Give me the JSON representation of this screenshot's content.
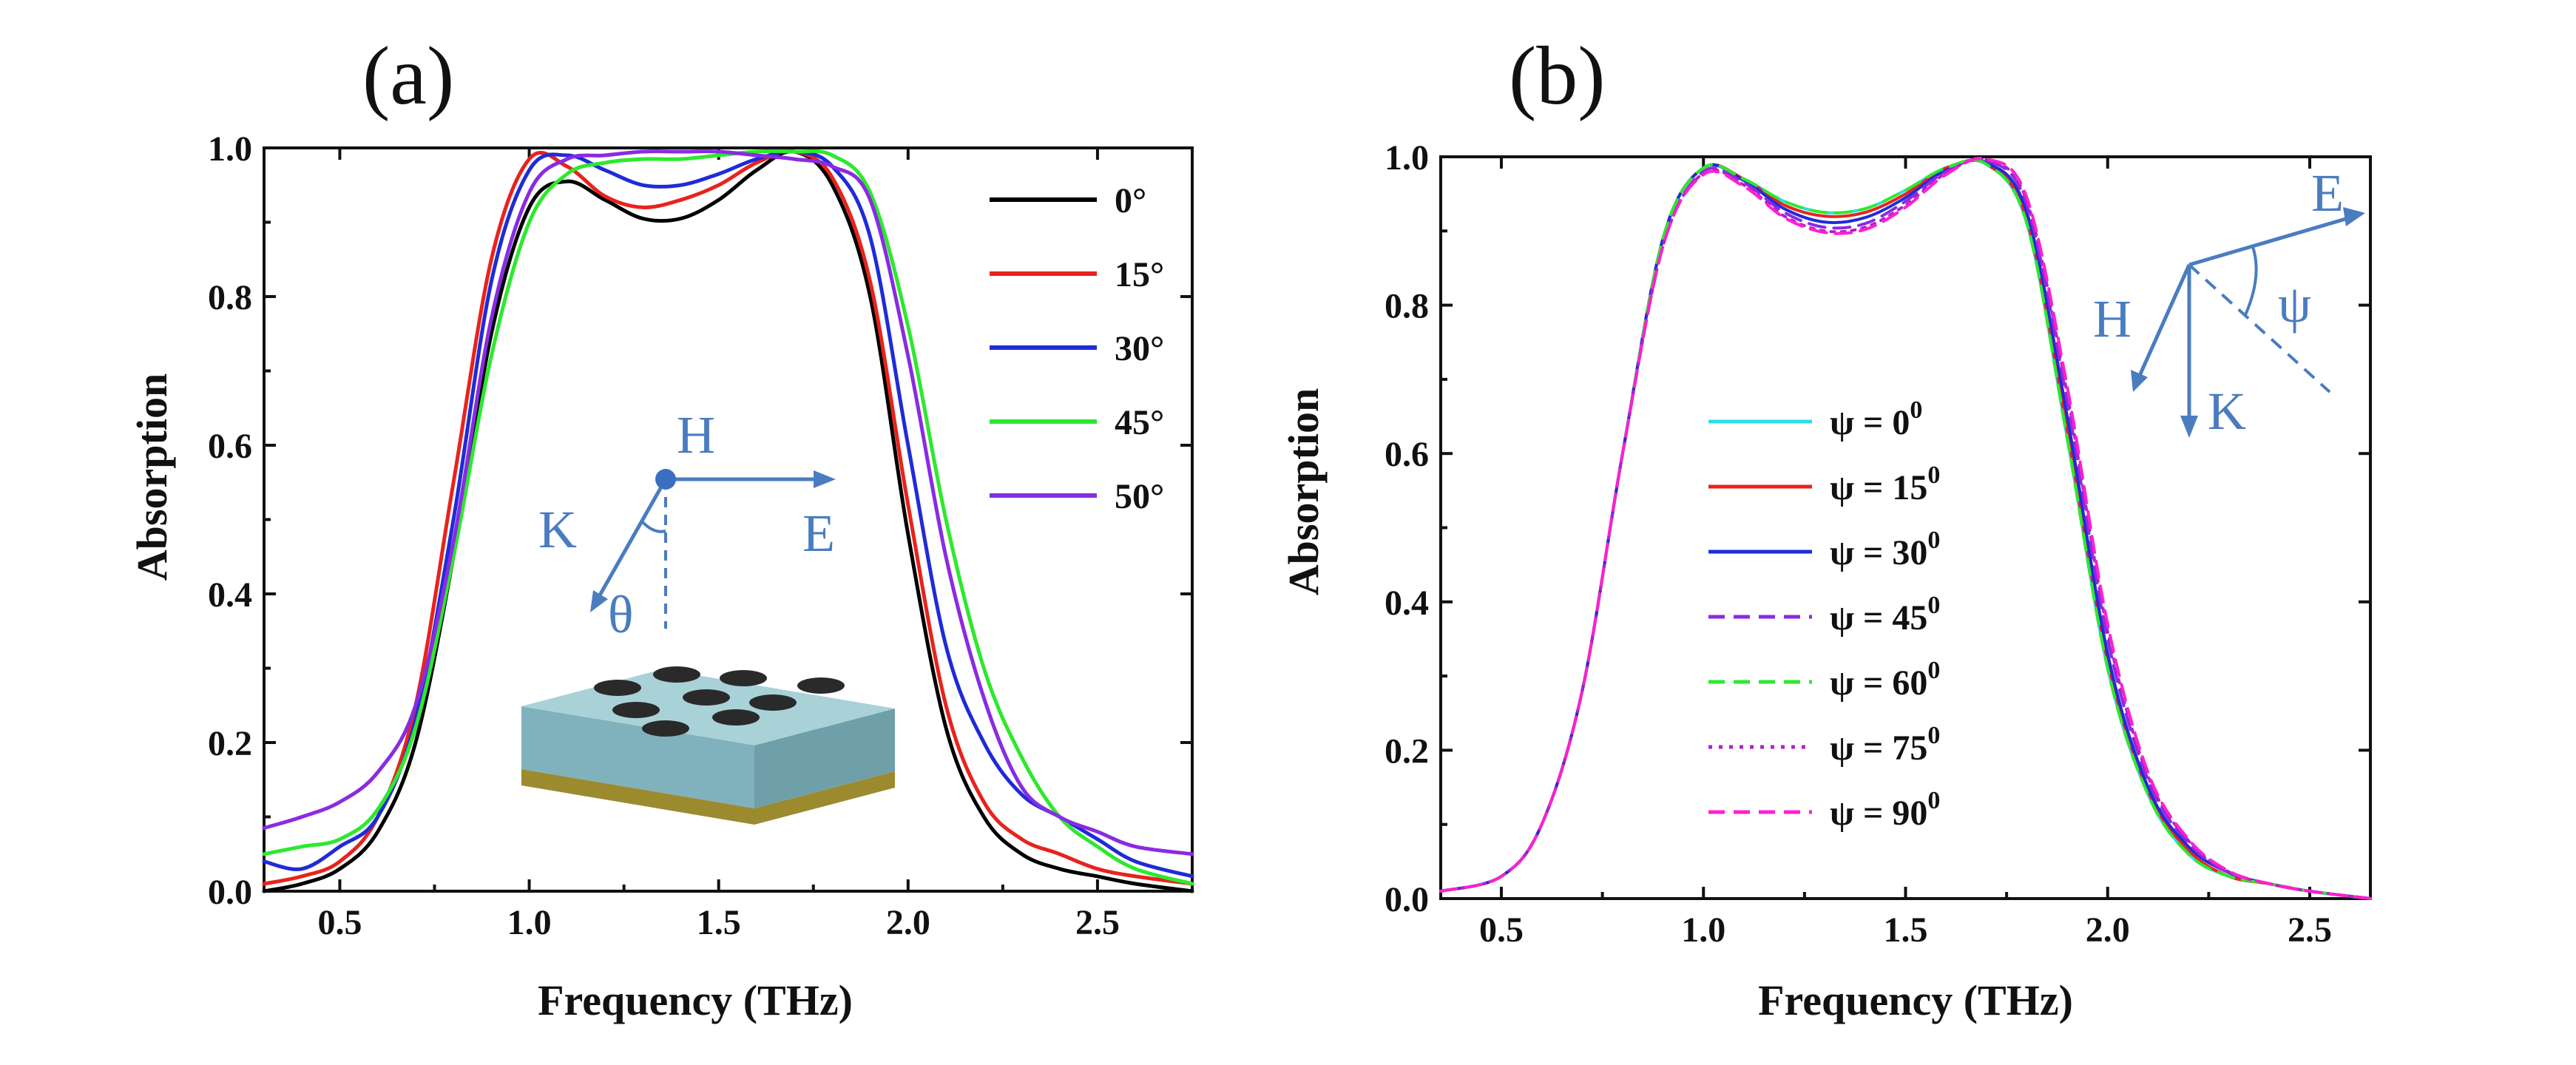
{
  "chart_data": [
    {
      "type": "line",
      "panel_label": "(a)",
      "xlabel": "Frequency (THz)",
      "ylabel": "Absorption",
      "xlim": [
        0.3,
        2.75
      ],
      "ylim": [
        0.0,
        1.0
      ],
      "xticks": [
        "0.5",
        "1.0",
        "1.5",
        "2.0",
        "2.5"
      ],
      "yticks": [
        "0.0",
        "0.2",
        "0.4",
        "0.6",
        "0.8",
        "1.0"
      ],
      "legend_position": "top-right",
      "series": [
        {
          "name": "0°",
          "color": "#000000",
          "dash": "solid",
          "x": [
            0.3,
            0.4,
            0.5,
            0.6,
            0.7,
            0.8,
            0.9,
            1.0,
            1.1,
            1.2,
            1.3,
            1.4,
            1.5,
            1.6,
            1.7,
            1.8,
            1.9,
            2.0,
            2.1,
            2.2,
            2.3,
            2.4,
            2.5,
            2.6,
            2.75
          ],
          "y": [
            0.0,
            0.01,
            0.03,
            0.08,
            0.2,
            0.45,
            0.75,
            0.92,
            0.955,
            0.93,
            0.905,
            0.905,
            0.93,
            0.97,
            0.995,
            0.95,
            0.8,
            0.48,
            0.22,
            0.1,
            0.05,
            0.03,
            0.02,
            0.01,
            0.0
          ]
        },
        {
          "name": "15°",
          "color": "#e8231c",
          "dash": "solid",
          "x": [
            0.3,
            0.4,
            0.5,
            0.6,
            0.7,
            0.8,
            0.9,
            1.0,
            1.1,
            1.2,
            1.3,
            1.4,
            1.5,
            1.6,
            1.7,
            1.8,
            1.9,
            2.0,
            2.1,
            2.2,
            2.3,
            2.4,
            2.5,
            2.6,
            2.75
          ],
          "y": [
            0.01,
            0.02,
            0.04,
            0.1,
            0.25,
            0.55,
            0.85,
            0.985,
            0.975,
            0.935,
            0.92,
            0.93,
            0.95,
            0.98,
            0.995,
            0.96,
            0.82,
            0.52,
            0.25,
            0.12,
            0.07,
            0.05,
            0.03,
            0.02,
            0.01
          ]
        },
        {
          "name": "30°",
          "color": "#1f2bd8",
          "dash": "solid",
          "x": [
            0.3,
            0.4,
            0.5,
            0.6,
            0.7,
            0.8,
            0.9,
            1.0,
            1.1,
            1.2,
            1.3,
            1.4,
            1.5,
            1.6,
            1.7,
            1.8,
            1.9,
            2.0,
            2.1,
            2.2,
            2.3,
            2.4,
            2.5,
            2.6,
            2.75
          ],
          "y": [
            0.04,
            0.03,
            0.06,
            0.1,
            0.23,
            0.5,
            0.82,
            0.97,
            0.99,
            0.97,
            0.95,
            0.95,
            0.965,
            0.985,
            0.995,
            0.975,
            0.88,
            0.6,
            0.33,
            0.2,
            0.13,
            0.1,
            0.07,
            0.04,
            0.02
          ]
        },
        {
          "name": "45°",
          "color": "#2ee82e",
          "dash": "solid",
          "x": [
            0.3,
            0.4,
            0.5,
            0.6,
            0.7,
            0.8,
            0.9,
            1.0,
            1.1,
            1.2,
            1.3,
            1.4,
            1.5,
            1.6,
            1.7,
            1.8,
            1.9,
            2.0,
            2.1,
            2.2,
            2.3,
            2.4,
            2.5,
            2.6,
            2.75
          ],
          "y": [
            0.05,
            0.06,
            0.07,
            0.11,
            0.22,
            0.45,
            0.72,
            0.9,
            0.965,
            0.98,
            0.985,
            0.985,
            0.99,
            0.995,
            0.995,
            0.99,
            0.94,
            0.76,
            0.5,
            0.3,
            0.18,
            0.1,
            0.06,
            0.03,
            0.01
          ]
        },
        {
          "name": "50°",
          "color": "#8a2be2",
          "dash": "solid",
          "x": [
            0.3,
            0.4,
            0.5,
            0.6,
            0.7,
            0.8,
            0.9,
            1.0,
            1.1,
            1.2,
            1.3,
            1.4,
            1.5,
            1.6,
            1.7,
            1.8,
            1.9,
            2.0,
            2.1,
            2.2,
            2.3,
            2.4,
            2.5,
            2.6,
            2.75
          ],
          "y": [
            0.085,
            0.1,
            0.12,
            0.16,
            0.25,
            0.47,
            0.77,
            0.94,
            0.985,
            0.99,
            0.995,
            0.995,
            0.995,
            0.99,
            0.985,
            0.975,
            0.93,
            0.72,
            0.45,
            0.26,
            0.14,
            0.1,
            0.08,
            0.06,
            0.05
          ]
        }
      ],
      "inset": {
        "labels": [
          "H",
          "E",
          "K",
          "θ"
        ]
      }
    },
    {
      "type": "line",
      "panel_label": "(b)",
      "xlabel": "Frequency (THz)",
      "ylabel": "Absorption",
      "xlim": [
        0.35,
        2.65
      ],
      "ylim": [
        0.0,
        1.0
      ],
      "xticks": [
        "0.5",
        "1.0",
        "1.5",
        "2.0",
        "2.5"
      ],
      "yticks": [
        "0.0",
        "0.2",
        "0.4",
        "0.6",
        "0.8",
        "1.0"
      ],
      "legend_position": "center-left",
      "series": [
        {
          "name": "ψ = 0",
          "sup": "0",
          "color": "#28e0e8",
          "dash": "solid",
          "x": [
            0.35,
            0.5,
            0.6,
            0.7,
            0.8,
            0.9,
            1.0,
            1.1,
            1.2,
            1.3,
            1.4,
            1.5,
            1.6,
            1.7,
            1.8,
            1.9,
            2.0,
            2.1,
            2.2,
            2.3,
            2.4,
            2.5,
            2.65
          ],
          "y": [
            0.01,
            0.03,
            0.1,
            0.28,
            0.6,
            0.89,
            0.985,
            0.97,
            0.94,
            0.925,
            0.93,
            0.955,
            0.985,
            0.99,
            0.91,
            0.62,
            0.31,
            0.14,
            0.06,
            0.03,
            0.02,
            0.01,
            0.0
          ]
        },
        {
          "name": "ψ = 15",
          "sup": "0",
          "color": "#e8231c",
          "dash": "solid",
          "x": [
            0.35,
            0.5,
            0.6,
            0.7,
            0.8,
            0.9,
            1.0,
            1.1,
            1.2,
            1.3,
            1.4,
            1.5,
            1.6,
            1.7,
            1.8,
            1.9,
            2.0,
            2.1,
            2.2,
            2.3,
            2.4,
            2.5,
            2.65
          ],
          "y": [
            0.01,
            0.03,
            0.1,
            0.28,
            0.6,
            0.89,
            0.985,
            0.97,
            0.935,
            0.92,
            0.925,
            0.95,
            0.985,
            0.99,
            0.915,
            0.63,
            0.32,
            0.145,
            0.065,
            0.03,
            0.02,
            0.01,
            0.0
          ]
        },
        {
          "name": "ψ = 30",
          "sup": "0",
          "color": "#1f2bd8",
          "dash": "solid",
          "x": [
            0.35,
            0.5,
            0.6,
            0.7,
            0.8,
            0.9,
            1.0,
            1.1,
            1.2,
            1.3,
            1.4,
            1.5,
            1.6,
            1.7,
            1.8,
            1.9,
            2.0,
            2.1,
            2.2,
            2.3,
            2.4,
            2.5,
            2.65
          ],
          "y": [
            0.01,
            0.03,
            0.1,
            0.28,
            0.6,
            0.89,
            0.985,
            0.968,
            0.93,
            0.912,
            0.918,
            0.945,
            0.982,
            0.992,
            0.925,
            0.65,
            0.33,
            0.15,
            0.07,
            0.035,
            0.02,
            0.01,
            0.0
          ]
        },
        {
          "name": "ψ = 45",
          "sup": "0",
          "color": "#8a2be2",
          "dash": "dashed",
          "x": [
            0.35,
            0.5,
            0.6,
            0.7,
            0.8,
            0.9,
            1.0,
            1.1,
            1.2,
            1.3,
            1.4,
            1.5,
            1.6,
            1.7,
            1.8,
            1.9,
            2.0,
            2.1,
            2.2,
            2.3,
            2.4,
            2.5,
            2.65
          ],
          "y": [
            0.01,
            0.03,
            0.1,
            0.28,
            0.6,
            0.88,
            0.98,
            0.965,
            0.925,
            0.905,
            0.91,
            0.94,
            0.98,
            0.995,
            0.935,
            0.67,
            0.35,
            0.16,
            0.075,
            0.035,
            0.02,
            0.01,
            0.0
          ]
        },
        {
          "name": "ψ = 60",
          "sup": "0",
          "color": "#2ee82e",
          "dash": "dashed",
          "x": [
            0.35,
            0.5,
            0.6,
            0.7,
            0.8,
            0.9,
            1.0,
            1.1,
            1.2,
            1.3,
            1.4,
            1.5,
            1.6,
            1.7,
            1.8,
            1.9,
            2.0,
            2.1,
            2.2,
            2.3,
            2.4,
            2.5,
            2.65
          ],
          "y": [
            0.01,
            0.03,
            0.1,
            0.28,
            0.6,
            0.89,
            0.985,
            0.97,
            0.94,
            0.925,
            0.93,
            0.955,
            0.985,
            0.99,
            0.91,
            0.62,
            0.31,
            0.14,
            0.06,
            0.03,
            0.02,
            0.01,
            0.0
          ]
        },
        {
          "name": "ψ = 75",
          "sup": "0",
          "color": "#b020d0",
          "dash": "dotted",
          "x": [
            0.35,
            0.5,
            0.6,
            0.7,
            0.8,
            0.9,
            1.0,
            1.1,
            1.2,
            1.3,
            1.4,
            1.5,
            1.6,
            1.7,
            1.8,
            1.9,
            2.0,
            2.1,
            2.2,
            2.3,
            2.4,
            2.5,
            2.65
          ],
          "y": [
            0.01,
            0.03,
            0.1,
            0.28,
            0.6,
            0.88,
            0.978,
            0.962,
            0.92,
            0.9,
            0.905,
            0.935,
            0.978,
            0.996,
            0.94,
            0.68,
            0.36,
            0.165,
            0.078,
            0.036,
            0.02,
            0.01,
            0.0
          ]
        },
        {
          "name": "ψ = 90",
          "sup": "0",
          "color": "#ff1fd0",
          "dash": "dashed",
          "x": [
            0.35,
            0.5,
            0.6,
            0.7,
            0.8,
            0.9,
            1.0,
            1.1,
            1.2,
            1.3,
            1.4,
            1.5,
            1.6,
            1.7,
            1.8,
            1.9,
            2.0,
            2.1,
            2.2,
            2.3,
            2.4,
            2.5,
            2.65
          ],
          "y": [
            0.01,
            0.03,
            0.1,
            0.28,
            0.6,
            0.88,
            0.976,
            0.96,
            0.918,
            0.898,
            0.902,
            0.932,
            0.976,
            0.997,
            0.945,
            0.69,
            0.37,
            0.17,
            0.08,
            0.037,
            0.02,
            0.01,
            0.0
          ]
        }
      ],
      "inset": {
        "labels": [
          "E",
          "ψ",
          "H",
          "K"
        ]
      }
    }
  ]
}
